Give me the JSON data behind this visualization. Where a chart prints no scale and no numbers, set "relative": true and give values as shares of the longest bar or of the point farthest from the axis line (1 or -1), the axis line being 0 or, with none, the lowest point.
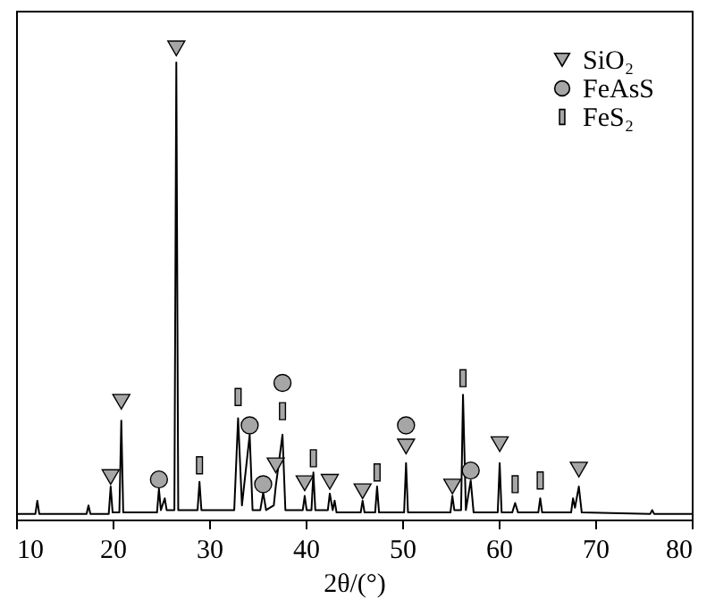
{
  "chart_data": {
    "type": "line",
    "relative": true,
    "xlabel": "2θ/(°)",
    "xlim": [
      10,
      80
    ],
    "xticks": [
      10,
      20,
      30,
      40,
      50,
      60,
      70,
      80
    ],
    "legend": "top right",
    "grid": false,
    "series": [
      {
        "color": "#000000",
        "x": [
          10,
          12.0,
          12.2,
          12.4,
          17.3,
          17.5,
          17.7,
          19.6,
          19.8,
          20.0,
          20.7,
          20.9,
          21.1,
          24.6,
          24.8,
          25.0,
          25.4,
          25.6,
          26.4,
          26.6,
          26.8,
          28.8,
          29.0,
          29.2,
          32.6,
          33.0,
          33.4,
          34.2,
          34.5,
          35.3,
          35.6,
          35.9,
          36.7,
          36.9,
          37.6,
          37.9,
          39.7,
          39.9,
          40.1,
          40.6,
          40.8,
          41.0,
          42.3,
          42.5,
          42.8,
          43.0,
          43.2,
          45.7,
          45.9,
          46.1,
          47.2,
          47.4,
          47.6,
          50.2,
          50.4,
          50.6,
          55.0,
          55.2,
          55.4,
          56.1,
          56.3,
          56.6,
          57.1,
          57.4,
          59.9,
          60.1,
          60.3,
          61.4,
          61.7,
          62.0,
          64.1,
          64.3,
          64.5,
          67.5,
          67.7,
          67.9,
          68.3,
          68.6,
          75.7,
          75.9,
          76.1,
          80
        ],
        "values": [
          0.012,
          0.012,
          0.04,
          0.012,
          0.012,
          0.03,
          0.012,
          0.012,
          0.07,
          0.015,
          0.015,
          0.21,
          0.015,
          0.015,
          0.065,
          0.02,
          0.045,
          0.02,
          0.02,
          0.97,
          0.02,
          0.02,
          0.08,
          0.02,
          0.02,
          0.215,
          0.03,
          0.18,
          0.02,
          0.02,
          0.057,
          0.02,
          0.03,
          0.07,
          0.18,
          0.02,
          0.02,
          0.05,
          0.02,
          0.02,
          0.1,
          0.02,
          0.02,
          0.055,
          0.02,
          0.04,
          0.015,
          0.015,
          0.04,
          0.015,
          0.015,
          0.07,
          0.015,
          0.015,
          0.12,
          0.015,
          0.015,
          0.05,
          0.02,
          0.02,
          0.265,
          0.02,
          0.083,
          0.015,
          0.015,
          0.12,
          0.015,
          0.015,
          0.035,
          0.015,
          0.015,
          0.045,
          0.015,
          0.015,
          0.045,
          0.025,
          0.07,
          0.015,
          0.012,
          0.02,
          0.012,
          0.012
        ]
      },
      {
        "type": "scatter",
        "name": "SiO₂",
        "color": "#a6a6a6",
        "marker": "triangle",
        "x": [
          19.8,
          20.9,
          26.6,
          36.9,
          39.9,
          42.5,
          45.9,
          50.4,
          55.2,
          60.1,
          68.3
        ],
        "values": [
          0.09,
          0.25,
          1.0,
          0.115,
          0.077,
          0.08,
          0.06,
          0.155,
          0.07,
          0.16,
          0.106
        ]
      },
      {
        "type": "scatter",
        "name": "FeAsS",
        "color": "#a6a6a6",
        "marker": "circle",
        "x": [
          24.8,
          34.2,
          35.6,
          37.6,
          50.4,
          57.1
        ],
        "values": [
          0.085,
          0.2,
          0.075,
          0.29,
          0.2,
          0.104
        ]
      },
      {
        "type": "scatter",
        "name": "FeS₂",
        "color": "#a6a6a6",
        "marker": "square",
        "x": [
          29.0,
          33.0,
          37.6,
          40.8,
          47.4,
          56.3,
          61.7,
          64.3
        ],
        "values": [
          0.115,
          0.26,
          0.23,
          0.13,
          0.1,
          0.3,
          0.075,
          0.083
        ]
      }
    ]
  }
}
